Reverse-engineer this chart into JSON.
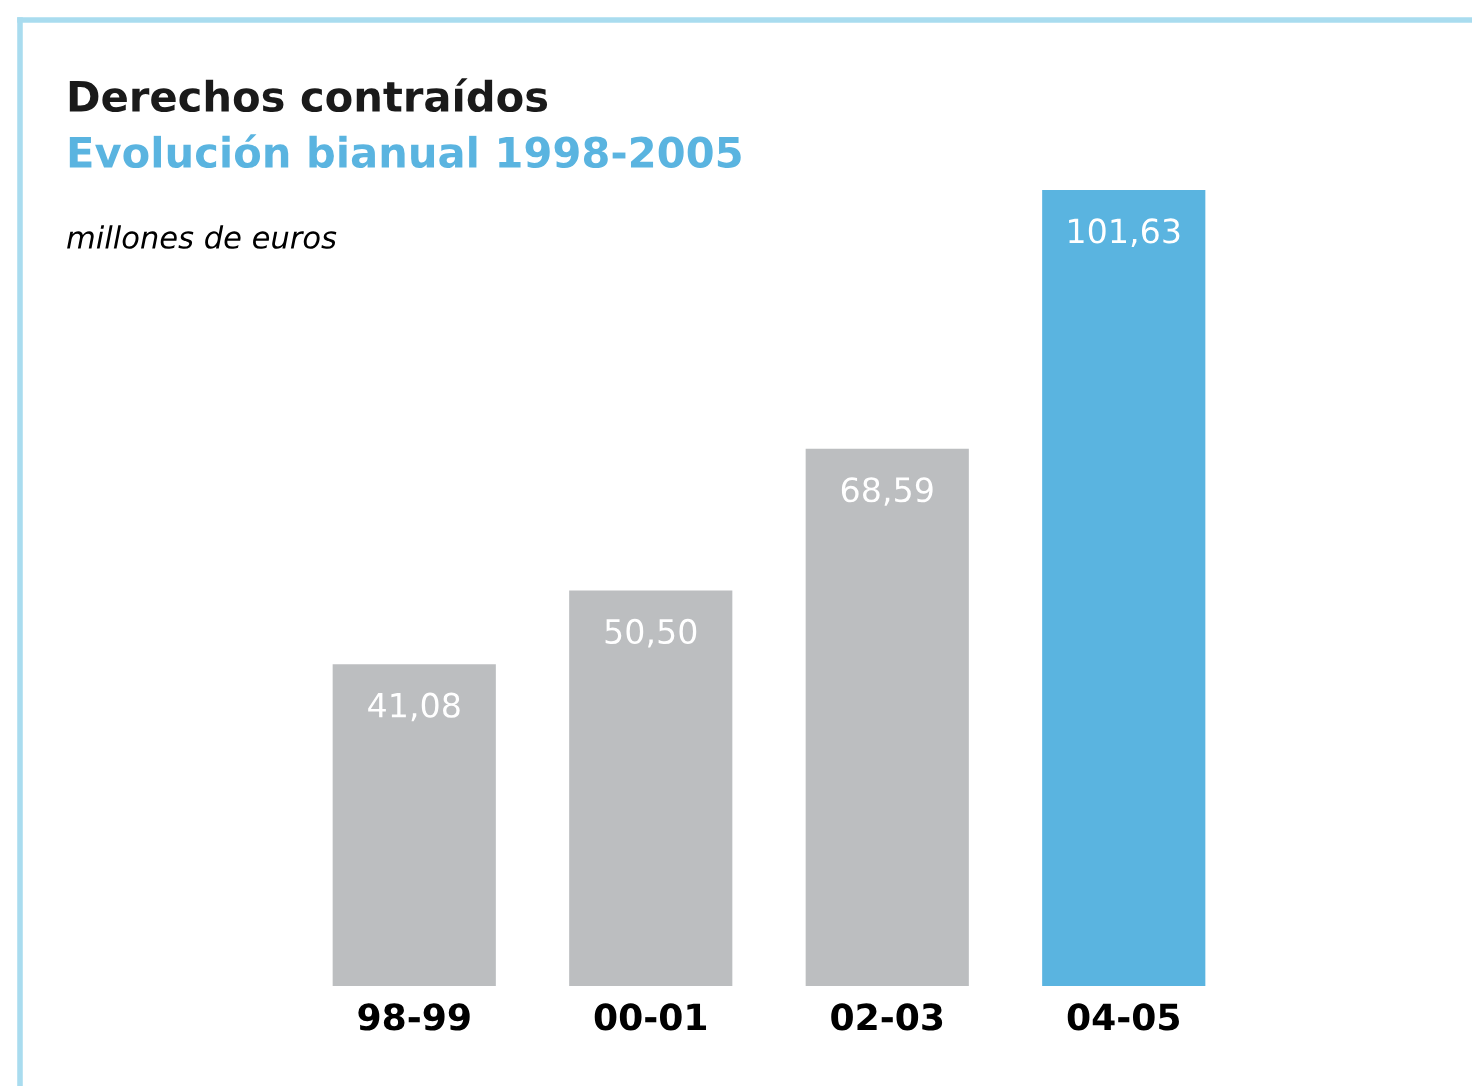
{
  "chart_data": {
    "type": "bar",
    "title": "Derechos contraídos",
    "subtitle": "Evolución bianual 1998-2005",
    "annotations": [
      "millones de euros"
    ],
    "categories": [
      "98-99",
      "00-01",
      "02-03",
      "04-05"
    ],
    "values": [
      41.08,
      50.5,
      68.59,
      101.63
    ],
    "value_labels": [
      "41,08",
      "50,50",
      "68,59",
      "101,63"
    ],
    "colors": [
      "#bcbec0",
      "#bcbec0",
      "#bcbec0",
      "#5ab4e0"
    ],
    "tick_labels": "x",
    "grid": false,
    "legend": false
  }
}
